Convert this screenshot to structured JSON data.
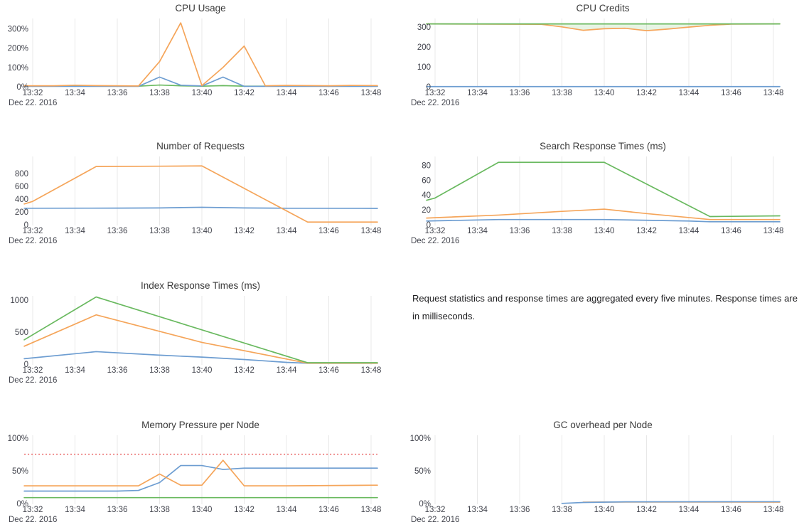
{
  "page": {
    "background": "#ffffff"
  },
  "palette": {
    "blue": "#6d9dd1",
    "orange": "#f5a55a",
    "green": "#69b95f",
    "threshold_red": "#ee8c8c",
    "gridline": "#e8e8e8",
    "title_color": "#3a3a3a",
    "tick_color": "#43454e",
    "credits_fill": "rgba(121,193,104,0.18)"
  },
  "note": {
    "text": "Request statistics and response times are aggregated every five minutes. Response times are in milliseconds."
  },
  "x_axis": {
    "tick_minutes": [
      32,
      34,
      36,
      38,
      40,
      42,
      44,
      46,
      48
    ],
    "tick_labels": [
      "13:32",
      "13:34",
      "13:36",
      "13:38",
      "13:40",
      "13:42",
      "13:44",
      "13:46",
      "13:48"
    ],
    "date_label": "Dec 22. 2016"
  },
  "chart_data": [
    {
      "type": "line",
      "title": "CPU Usage",
      "ylim": [
        0,
        345
      ],
      "y_ticks": [
        {
          "v": 0,
          "label": "0%"
        },
        {
          "v": 100,
          "label": "100%"
        },
        {
          "v": 200,
          "label": "200%"
        },
        {
          "v": 300,
          "label": "300%"
        }
      ],
      "grid": true,
      "legend": "none",
      "series": [
        {
          "name": "green",
          "color": "green",
          "points": [
            [
              31.6,
              3
            ],
            [
              37,
              3
            ],
            [
              38,
              9
            ],
            [
              39,
              5
            ],
            [
              40,
              3
            ],
            [
              41,
              6
            ],
            [
              42,
              3
            ],
            [
              48.3,
              3
            ]
          ]
        },
        {
          "name": "blue",
          "color": "blue",
          "points": [
            [
              31.6,
              2
            ],
            [
              37,
              2
            ],
            [
              38,
              50
            ],
            [
              39,
              8
            ],
            [
              40,
              4
            ],
            [
              41,
              50
            ],
            [
              42,
              2
            ],
            [
              48.3,
              2
            ]
          ]
        },
        {
          "name": "orange",
          "color": "orange",
          "points": [
            [
              31.6,
              5
            ],
            [
              33,
              5
            ],
            [
              34,
              8
            ],
            [
              35,
              6
            ],
            [
              36,
              5
            ],
            [
              37,
              4
            ],
            [
              38,
              130
            ],
            [
              39,
              330
            ],
            [
              40,
              6
            ],
            [
              41,
              100
            ],
            [
              42,
              210
            ],
            [
              43,
              5
            ],
            [
              44,
              7
            ],
            [
              45,
              6
            ],
            [
              46,
              5
            ],
            [
              47,
              7
            ],
            [
              48.3,
              6
            ]
          ]
        }
      ]
    },
    {
      "type": "line",
      "title": "CPU Credits",
      "ylim": [
        0,
        335
      ],
      "y_ticks": [
        {
          "v": 0,
          "label": "0"
        },
        {
          "v": 100,
          "label": "100"
        },
        {
          "v": 200,
          "label": "200"
        },
        {
          "v": 300,
          "label": "300"
        }
      ],
      "grid": true,
      "legend": "none",
      "fill_between": {
        "upper": "green",
        "lower": "orange",
        "color_key": "credits_fill"
      },
      "series": [
        {
          "name": "blue",
          "color": "blue",
          "points": [
            [
              31.6,
              1
            ],
            [
              48.3,
              1
            ]
          ]
        },
        {
          "name": "orange",
          "color": "orange",
          "points": [
            [
              31.6,
              315
            ],
            [
              37,
              313
            ],
            [
              38,
              300
            ],
            [
              39,
              283
            ],
            [
              40,
              291
            ],
            [
              41,
              293
            ],
            [
              42,
              281
            ],
            [
              43,
              289
            ],
            [
              44,
              299
            ],
            [
              45,
              308
            ],
            [
              46,
              314
            ],
            [
              48.3,
              315
            ]
          ]
        },
        {
          "name": "green",
          "color": "green",
          "points": [
            [
              31.6,
              315
            ],
            [
              48.3,
              315
            ]
          ]
        }
      ]
    },
    {
      "type": "line",
      "title": "Number of Requests",
      "ylim": [
        0,
        1045
      ],
      "y_ticks": [
        {
          "v": 0,
          "label": "0"
        },
        {
          "v": 200,
          "label": "200"
        },
        {
          "v": 400,
          "label": "400"
        },
        {
          "v": 600,
          "label": "600"
        },
        {
          "v": 800,
          "label": "800"
        }
      ],
      "grid": true,
      "legend": "none",
      "series": [
        {
          "name": "blue",
          "color": "blue",
          "points": [
            [
              31.6,
              258
            ],
            [
              36,
              260
            ],
            [
              38,
              263
            ],
            [
              40,
              273
            ],
            [
              42,
              263
            ],
            [
              44,
              258
            ],
            [
              48.3,
              256
            ]
          ]
        },
        {
          "name": "orange",
          "color": "orange",
          "points": [
            [
              31.6,
              325
            ],
            [
              32,
              365
            ],
            [
              35,
              910
            ],
            [
              38,
              915
            ],
            [
              40,
              920
            ],
            [
              45,
              42
            ],
            [
              48.3,
              42
            ]
          ]
        }
      ]
    },
    {
      "type": "line",
      "title": "Search Response Times (ms)",
      "ylim": [
        0,
        90
      ],
      "y_ticks": [
        {
          "v": 0,
          "label": "0"
        },
        {
          "v": 20,
          "label": "20"
        },
        {
          "v": 40,
          "label": "40"
        },
        {
          "v": 60,
          "label": "60"
        },
        {
          "v": 80,
          "label": "80"
        }
      ],
      "grid": true,
      "legend": "none",
      "series": [
        {
          "name": "blue",
          "color": "blue",
          "points": [
            [
              31.6,
              5
            ],
            [
              35,
              7
            ],
            [
              40,
              7
            ],
            [
              44,
              5
            ],
            [
              45,
              4
            ],
            [
              48.3,
              4
            ]
          ]
        },
        {
          "name": "orange",
          "color": "orange",
          "points": [
            [
              31.6,
              9
            ],
            [
              35,
              13
            ],
            [
              38,
              18
            ],
            [
              40,
              21
            ],
            [
              42,
              15
            ],
            [
              45,
              7
            ],
            [
              48.3,
              7
            ]
          ]
        },
        {
          "name": "green",
          "color": "green",
          "points": [
            [
              31.6,
              33
            ],
            [
              32,
              36
            ],
            [
              35,
              84
            ],
            [
              40,
              84
            ],
            [
              45,
              11
            ],
            [
              48.3,
              12
            ]
          ]
        }
      ]
    },
    {
      "type": "line",
      "title": "Index Response Times (ms)",
      "ylim": [
        0,
        1045
      ],
      "y_ticks": [
        {
          "v": 0,
          "label": "0"
        },
        {
          "v": 500,
          "label": "500"
        },
        {
          "v": 1000,
          "label": "1000"
        }
      ],
      "grid": true,
      "legend": "none",
      "series": [
        {
          "name": "blue",
          "color": "blue",
          "points": [
            [
              31.6,
              85
            ],
            [
              35,
              195
            ],
            [
              38,
              140
            ],
            [
              40,
              110
            ],
            [
              42,
              72
            ],
            [
              44,
              28
            ],
            [
              45,
              14
            ],
            [
              48.3,
              13
            ]
          ]
        },
        {
          "name": "orange",
          "color": "orange",
          "points": [
            [
              31.6,
              280
            ],
            [
              35,
              770
            ],
            [
              40,
              340
            ],
            [
              45,
              15
            ],
            [
              48.3,
              15
            ]
          ]
        },
        {
          "name": "green",
          "color": "green",
          "points": [
            [
              31.6,
              380
            ],
            [
              35,
              1050
            ],
            [
              45,
              22
            ],
            [
              48.3,
              22
            ]
          ]
        }
      ]
    },
    {
      "type": "line",
      "title": "Memory Pressure per Node",
      "ylim": [
        0,
        102
      ],
      "y_ticks": [
        {
          "v": 0,
          "label": "0%"
        },
        {
          "v": 50,
          "label": "50%"
        },
        {
          "v": 100,
          "label": "100%"
        }
      ],
      "grid": true,
      "legend": "none",
      "threshold": {
        "v": 75,
        "style": "dotted",
        "color_key": "threshold_red"
      },
      "series": [
        {
          "name": "green",
          "color": "green",
          "points": [
            [
              31.6,
              9
            ],
            [
              48.3,
              9
            ]
          ]
        },
        {
          "name": "blue",
          "color": "blue",
          "points": [
            [
              31.6,
              19
            ],
            [
              36,
              19
            ],
            [
              37,
              20
            ],
            [
              38,
              32
            ],
            [
              39,
              58
            ],
            [
              40,
              58
            ],
            [
              41,
              52
            ],
            [
              42,
              54
            ],
            [
              48.3,
              54
            ]
          ]
        },
        {
          "name": "orange",
          "color": "orange",
          "points": [
            [
              31.6,
              27
            ],
            [
              37,
              27
            ],
            [
              38,
              45
            ],
            [
              39,
              28
            ],
            [
              40,
              28
            ],
            [
              41,
              66
            ],
            [
              42,
              27
            ],
            [
              44,
              27
            ],
            [
              48.3,
              28
            ]
          ]
        }
      ]
    },
    {
      "type": "line",
      "title": "GC overhead per Node",
      "ylim": [
        0,
        102
      ],
      "y_ticks": [
        {
          "v": 0,
          "label": "0%"
        },
        {
          "v": 50,
          "label": "50%"
        },
        {
          "v": 100,
          "label": "100%"
        }
      ],
      "grid": true,
      "legend": "none",
      "series": [
        {
          "name": "orange",
          "color": "orange",
          "points": [
            [
              39,
              2
            ],
            [
              40,
              2.3
            ],
            [
              48.3,
              2.2
            ]
          ]
        },
        {
          "name": "blue",
          "color": "blue",
          "points": [
            [
              38,
              0.2
            ],
            [
              39,
              1.6
            ],
            [
              41,
              2.6
            ],
            [
              48.3,
              2.8
            ]
          ]
        }
      ]
    }
  ]
}
